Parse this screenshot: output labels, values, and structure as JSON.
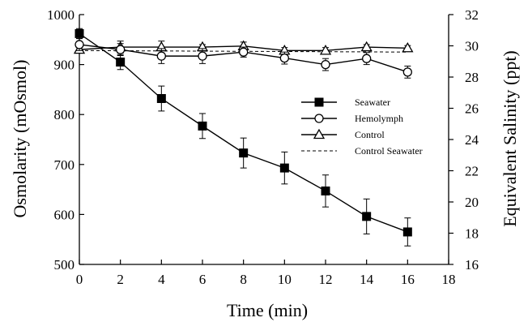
{
  "chart_data": {
    "type": "line",
    "xlabel": "Time (min)",
    "ylabel": "Osmolarity (mOsmol)",
    "y2label": "Equivalent  Salinity (ppt)",
    "xlim": [
      0,
      18
    ],
    "ylim": [
      500,
      1000
    ],
    "y2lim": [
      16,
      32
    ],
    "x_ticks": [
      0,
      2,
      4,
      6,
      8,
      10,
      12,
      14,
      16,
      18
    ],
    "y_ticks": [
      500,
      600,
      700,
      800,
      900,
      1000
    ],
    "y2_ticks": [
      16,
      18,
      20,
      22,
      24,
      26,
      28,
      30,
      32
    ],
    "grid": false,
    "legend_position": "center-right",
    "series": [
      {
        "name": "Seawater",
        "marker": "filled-square",
        "line": "solid",
        "x": [
          0,
          2,
          4,
          6,
          8,
          10,
          12,
          14,
          16
        ],
        "y": [
          962,
          905,
          832,
          777,
          723,
          693,
          647,
          596,
          565
        ],
        "err": [
          10,
          15,
          25,
          25,
          30,
          32,
          32,
          35,
          28
        ]
      },
      {
        "name": "Hemolymph",
        "marker": "open-circle",
        "line": "solid",
        "x": [
          0,
          2,
          4,
          6,
          8,
          10,
          12,
          14,
          16
        ],
        "y": [
          940,
          930,
          917,
          917,
          925,
          913,
          900,
          912,
          885
        ],
        "err": [
          12,
          12,
          15,
          15,
          10,
          12,
          12,
          12,
          12
        ]
      },
      {
        "name": "Control",
        "marker": "open-triangle",
        "line": "solid",
        "x": [
          0,
          2,
          4,
          6,
          8,
          10,
          12,
          14,
          16
        ],
        "y": [
          930,
          935,
          935,
          935,
          937,
          928,
          928,
          935,
          933
        ],
        "err": [
          5,
          12,
          12,
          5,
          8,
          6,
          6,
          5,
          5
        ]
      },
      {
        "name": "Control Seawater",
        "marker": "none",
        "line": "dashed",
        "x": [
          0,
          16
        ],
        "y": [
          928,
          925
        ],
        "err": []
      }
    ]
  }
}
